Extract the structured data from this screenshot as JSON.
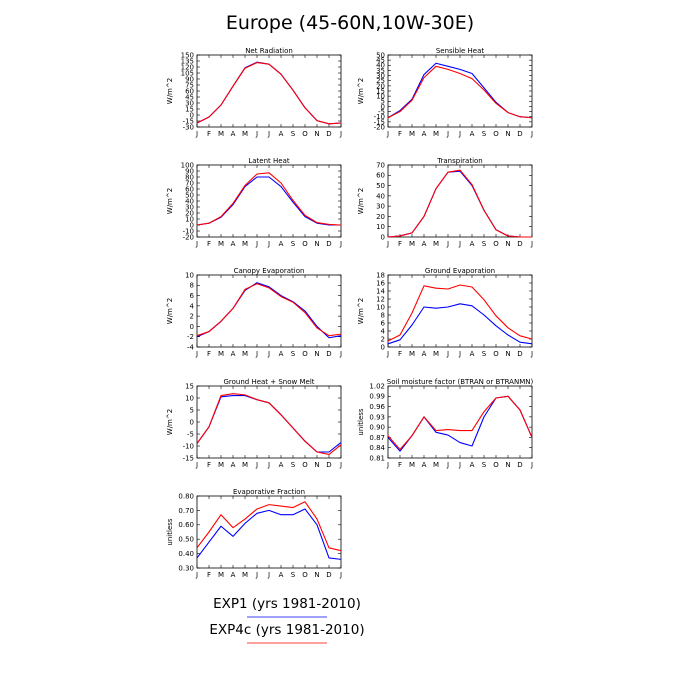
{
  "title": "Europe (45-60N,10W-30E)",
  "months": [
    "J",
    "F",
    "M",
    "A",
    "M",
    "J",
    "J",
    "A",
    "S",
    "O",
    "N",
    "D",
    "J"
  ],
  "colors": {
    "exp1": "#0000ff",
    "exp4c": "#ff0000"
  },
  "legend": [
    {
      "label": "EXP1 (yrs 1981-2010)",
      "color": "#0000ff"
    },
    {
      "label": "EXP4c (yrs 1981-2010)",
      "color": "#ff0000"
    }
  ],
  "chart_data": [
    {
      "type": "line",
      "title": "Net Radiation",
      "ylabel": "W/m^2",
      "ylim": [
        -30,
        150
      ],
      "yticks": [
        -30,
        -15,
        0,
        15,
        30,
        45,
        60,
        75,
        90,
        105,
        120,
        135,
        150
      ],
      "x": [
        "J",
        "F",
        "M",
        "A",
        "M",
        "J",
        "J",
        "A",
        "S",
        "O",
        "N",
        "D",
        "J"
      ],
      "series": [
        {
          "values": [
            -20,
            -5,
            25,
            72,
            118,
            132,
            127,
            102,
            62,
            18,
            -14,
            -22,
            -20
          ]
        },
        {
          "values": [
            -20,
            -5,
            25,
            72,
            117,
            131,
            127,
            102,
            62,
            18,
            -14,
            -22,
            -20
          ]
        }
      ]
    },
    {
      "type": "line",
      "title": "Sensible Heat",
      "ylabel": "W/m^2",
      "ylim": [
        -20,
        50
      ],
      "yticks": [
        -20,
        -15,
        -10,
        -5,
        0,
        5,
        10,
        15,
        20,
        25,
        30,
        35,
        40,
        45,
        50
      ],
      "x": [
        "J",
        "F",
        "M",
        "A",
        "M",
        "J",
        "J",
        "A",
        "S",
        "O",
        "N",
        "D",
        "J"
      ],
      "series": [
        {
          "values": [
            -11,
            -4,
            7,
            31,
            42,
            39,
            36,
            32,
            18,
            4,
            -6,
            -10,
            -11
          ]
        },
        {
          "values": [
            -11,
            -5,
            6,
            28,
            39,
            36,
            32,
            27,
            16,
            3,
            -6,
            -10,
            -11
          ]
        }
      ]
    },
    {
      "type": "line",
      "title": "Latent Heat",
      "ylabel": "W/m^2",
      "ylim": [
        -20,
        100
      ],
      "yticks": [
        -20,
        -10,
        0,
        10,
        20,
        30,
        40,
        50,
        60,
        70,
        80,
        90,
        100
      ],
      "x": [
        "J",
        "F",
        "M",
        "A",
        "M",
        "J",
        "J",
        "A",
        "S",
        "O",
        "N",
        "D",
        "J"
      ],
      "series": [
        {
          "values": [
            0,
            3,
            13,
            34,
            64,
            80,
            80,
            64,
            38,
            14,
            3,
            0,
            0
          ]
        },
        {
          "values": [
            0,
            3,
            14,
            36,
            66,
            85,
            87,
            70,
            41,
            16,
            4,
            1,
            0
          ]
        }
      ]
    },
    {
      "type": "line",
      "title": "Transpiration",
      "ylabel": "W/m^2",
      "ylim": [
        0,
        70
      ],
      "yticks": [
        0,
        10,
        20,
        30,
        40,
        50,
        60,
        70
      ],
      "x": [
        "J",
        "F",
        "M",
        "A",
        "M",
        "J",
        "J",
        "A",
        "S",
        "O",
        "N",
        "D",
        "J"
      ],
      "series": [
        {
          "values": [
            0,
            1,
            4,
            20,
            47,
            63,
            64,
            50,
            26,
            7,
            1,
            0,
            0
          ]
        },
        {
          "values": [
            0,
            1,
            4,
            20,
            47,
            63,
            65,
            51,
            26,
            7,
            1,
            0,
            0
          ]
        }
      ]
    },
    {
      "type": "line",
      "title": "Canopy Evaporation",
      "ylabel": "W/m^2",
      "ylim": [
        -4,
        10
      ],
      "yticks": [
        -4,
        -2,
        0,
        2,
        4,
        6,
        8,
        10
      ],
      "x": [
        "J",
        "F",
        "M",
        "A",
        "M",
        "J",
        "J",
        "A",
        "S",
        "O",
        "N",
        "D",
        "J"
      ],
      "series": [
        {
          "values": [
            -2,
            -1,
            1,
            3.5,
            7,
            8.5,
            7.7,
            6,
            4.8,
            3,
            0,
            -2.2,
            -1.8
          ]
        },
        {
          "values": [
            -1.8,
            -1,
            1,
            3.5,
            7.2,
            8.3,
            7.5,
            5.8,
            4.7,
            2.7,
            -0.3,
            -1.8,
            -1.5
          ]
        }
      ]
    },
    {
      "type": "line",
      "title": "Ground Evaporation",
      "ylabel": "W/m^2",
      "ylim": [
        0,
        18
      ],
      "yticks": [
        0,
        2,
        4,
        6,
        8,
        10,
        12,
        14,
        16,
        18
      ],
      "x": [
        "J",
        "F",
        "M",
        "A",
        "M",
        "J",
        "J",
        "A",
        "S",
        "O",
        "N",
        "D",
        "J"
      ],
      "series": [
        {
          "values": [
            0.8,
            1.8,
            5.5,
            10,
            9.7,
            10,
            10.8,
            10.3,
            8,
            5.3,
            3,
            1.2,
            0.8
          ]
        },
        {
          "values": [
            1.5,
            3,
            8.5,
            15.3,
            14.7,
            14.5,
            15.5,
            15,
            11.8,
            7.8,
            4.8,
            2.8,
            2
          ]
        }
      ]
    },
    {
      "type": "line",
      "title": "Ground Heat + Snow Melt",
      "ylabel": "W/m^2",
      "ylim": [
        -15,
        15
      ],
      "yticks": [
        -15,
        -10,
        -5,
        0,
        5,
        10,
        15
      ],
      "x": [
        "J",
        "F",
        "M",
        "A",
        "M",
        "J",
        "J",
        "A",
        "S",
        "O",
        "N",
        "D",
        "J"
      ],
      "series": [
        {
          "values": [
            -9,
            -2,
            10.5,
            11,
            11,
            9.3,
            8,
            3,
            -2.5,
            -8,
            -12.5,
            -12.5,
            -8.5
          ]
        },
        {
          "values": [
            -9,
            -2,
            11,
            11.8,
            11.3,
            9.3,
            8,
            3,
            -2.5,
            -8,
            -12.5,
            -13.5,
            -9.5
          ]
        }
      ]
    },
    {
      "type": "line",
      "title": "Soil moisture factor (BTRAN or BTRANMN)",
      "ylabel": "unitless",
      "ylim": [
        0.81,
        1.02
      ],
      "yticks": [
        0.81,
        0.84,
        0.87,
        0.9,
        0.93,
        0.96,
        0.99,
        1.02
      ],
      "yticklabels": [
        "0.81",
        "0.84",
        "0.87",
        "0.90",
        "0.93",
        "0.96",
        "0.99",
        "1.02"
      ],
      "x": [
        "J",
        "F",
        "M",
        "A",
        "M",
        "J",
        "J",
        "A",
        "S",
        "O",
        "N",
        "D",
        "J"
      ],
      "series": [
        {
          "values": [
            0.87,
            0.83,
            0.875,
            0.93,
            0.885,
            0.877,
            0.855,
            0.845,
            0.93,
            0.985,
            0.99,
            0.95,
            0.87
          ]
        },
        {
          "values": [
            0.875,
            0.835,
            0.875,
            0.93,
            0.89,
            0.893,
            0.89,
            0.89,
            0.945,
            0.985,
            0.99,
            0.95,
            0.87
          ]
        }
      ]
    },
    {
      "type": "line",
      "title": "Evaporative Fraction",
      "ylabel": "unitless",
      "ylim": [
        0.3,
        0.8
      ],
      "yticks": [
        0.3,
        0.4,
        0.5,
        0.6,
        0.7,
        0.8
      ],
      "yticklabels": [
        "0.30",
        "0.40",
        "0.50",
        "0.60",
        "0.70",
        "0.80"
      ],
      "x": [
        "J",
        "F",
        "M",
        "A",
        "M",
        "J",
        "J",
        "A",
        "S",
        "O",
        "N",
        "D",
        "J"
      ],
      "series": [
        {
          "values": [
            0.37,
            0.48,
            0.59,
            0.52,
            0.61,
            0.68,
            0.7,
            0.67,
            0.67,
            0.71,
            0.6,
            0.37,
            0.36
          ]
        },
        {
          "values": [
            0.44,
            0.55,
            0.67,
            0.58,
            0.64,
            0.71,
            0.74,
            0.73,
            0.72,
            0.76,
            0.64,
            0.44,
            0.42
          ]
        }
      ]
    }
  ]
}
